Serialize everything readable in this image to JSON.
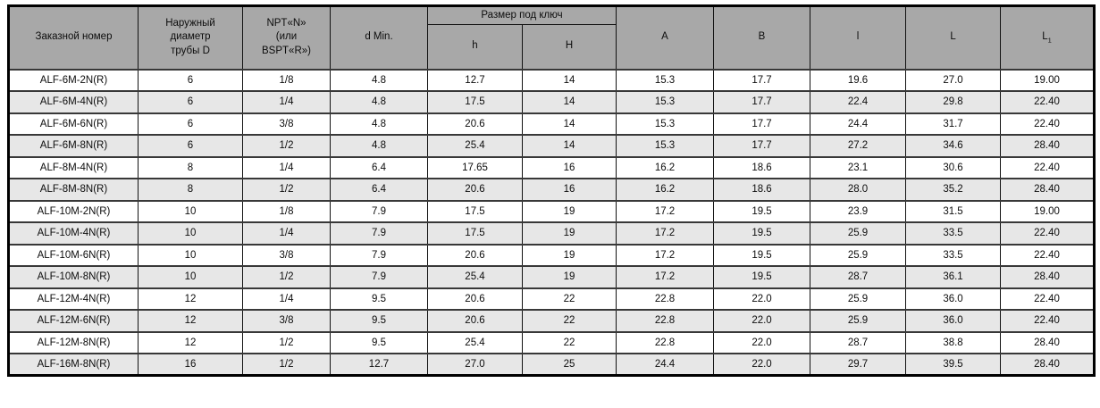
{
  "table": {
    "header": {
      "order": "Заказной номер",
      "outer_diameter": "Наружный\nдиаметр\nтрубы D",
      "thread": "NPT«N»\n(или\nBSPT«R»)",
      "d_min": "d Min.",
      "wrench_group": "Размер под ключ",
      "h_small": "h",
      "h_big": "H",
      "a": "A",
      "b": "B",
      "l_small": "l",
      "l_big": "L",
      "l1_base": "L",
      "l1_sub": "1"
    },
    "rows": [
      [
        "ALF-6M-2N(R)",
        "6",
        "1/8",
        "4.8",
        "12.7",
        "14",
        "15.3",
        "17.7",
        "19.6",
        "27.0",
        "19.00"
      ],
      [
        "ALF-6M-4N(R)",
        "6",
        "1/4",
        "4.8",
        "17.5",
        "14",
        "15.3",
        "17.7",
        "22.4",
        "29.8",
        "22.40"
      ],
      [
        "ALF-6M-6N(R)",
        "6",
        "3/8",
        "4.8",
        "20.6",
        "14",
        "15.3",
        "17.7",
        "24.4",
        "31.7",
        "22.40"
      ],
      [
        "ALF-6M-8N(R)",
        "6",
        "1/2",
        "4.8",
        "25.4",
        "14",
        "15.3",
        "17.7",
        "27.2",
        "34.6",
        "28.40"
      ],
      [
        "ALF-8M-4N(R)",
        "8",
        "1/4",
        "6.4",
        "17.65",
        "16",
        "16.2",
        "18.6",
        "23.1",
        "30.6",
        "22.40"
      ],
      [
        "ALF-8M-8N(R)",
        "8",
        "1/2",
        "6.4",
        "20.6",
        "16",
        "16.2",
        "18.6",
        "28.0",
        "35.2",
        "28.40"
      ],
      [
        "ALF-10M-2N(R)",
        "10",
        "1/8",
        "7.9",
        "17.5",
        "19",
        "17.2",
        "19.5",
        "23.9",
        "31.5",
        "19.00"
      ],
      [
        "ALF-10M-4N(R)",
        "10",
        "1/4",
        "7.9",
        "17.5",
        "19",
        "17.2",
        "19.5",
        "25.9",
        "33.5",
        "22.40"
      ],
      [
        "ALF-10M-6N(R)",
        "10",
        "3/8",
        "7.9",
        "20.6",
        "19",
        "17.2",
        "19.5",
        "25.9",
        "33.5",
        "22.40"
      ],
      [
        "ALF-10M-8N(R)",
        "10",
        "1/2",
        "7.9",
        "25.4",
        "19",
        "17.2",
        "19.5",
        "28.7",
        "36.1",
        "28.40"
      ],
      [
        "ALF-12M-4N(R)",
        "12",
        "1/4",
        "9.5",
        "20.6",
        "22",
        "22.8",
        "22.0",
        "25.9",
        "36.0",
        "22.40"
      ],
      [
        "ALF-12M-6N(R)",
        "12",
        "3/8",
        "9.5",
        "20.6",
        "22",
        "22.8",
        "22.0",
        "25.9",
        "36.0",
        "22.40"
      ],
      [
        "ALF-12M-8N(R)",
        "12",
        "1/2",
        "9.5",
        "25.4",
        "22",
        "22.8",
        "22.0",
        "28.7",
        "38.8",
        "28.40"
      ],
      [
        "ALF-16M-8N(R)",
        "16",
        "1/2",
        "12.7",
        "27.0",
        "25",
        "24.4",
        "22.0",
        "29.7",
        "39.5",
        "28.40"
      ]
    ]
  },
  "colors": {
    "header_bg": "#a8a8a8",
    "stripe_bg": "#e7e7e7",
    "row_bg": "#ffffff",
    "border": "#121212",
    "row_border": "#383838"
  }
}
